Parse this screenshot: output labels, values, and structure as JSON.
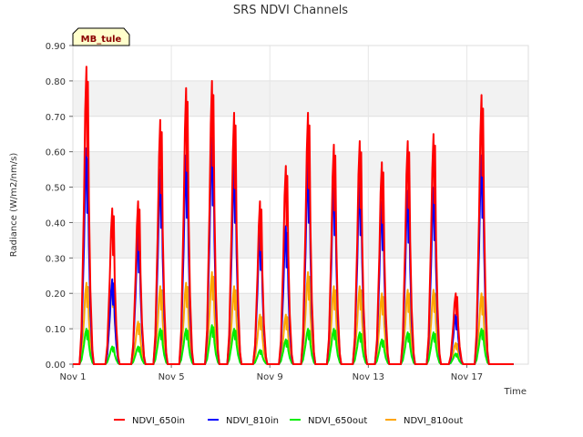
{
  "chart_data": {
    "type": "line",
    "title": "SRS NDVI Channels",
    "xlabel": "Time",
    "ylabel": "Radiance (W/m2/nm/s)",
    "ylim": [
      0,
      0.9
    ],
    "xlim": [
      1,
      19.5
    ],
    "y_ticks": [
      "0.00",
      "0.10",
      "0.20",
      "0.30",
      "0.40",
      "0.50",
      "0.60",
      "0.70",
      "0.80",
      "0.90"
    ],
    "x_ticks": [
      {
        "value": 1,
        "label": "Nov 1"
      },
      {
        "value": 5,
        "label": "Nov 5"
      },
      {
        "value": 9,
        "label": "Nov 9"
      },
      {
        "value": 13,
        "label": "Nov 13"
      },
      {
        "value": 17,
        "label": "Nov 17"
      }
    ],
    "station_label": "MB_tule",
    "series": [
      {
        "name": "NDVI_650in",
        "color": "#ff0000",
        "peaks": [
          0.84,
          0.44,
          0.46,
          0.69,
          0.78,
          0.8,
          0.71,
          0.46,
          0.56,
          0.71,
          0.62,
          0.63,
          0.57,
          0.63,
          0.65,
          0.2,
          0.76
        ]
      },
      {
        "name": "NDVI_810in",
        "color": "#0000ff",
        "peaks": [
          0.61,
          0.24,
          0.37,
          0.55,
          0.59,
          0.64,
          0.57,
          0.38,
          0.39,
          0.57,
          0.52,
          0.52,
          0.46,
          0.49,
          0.5,
          0.14,
          0.59
        ]
      },
      {
        "name": "NDVI_650out",
        "color": "#00ee00",
        "peaks": [
          0.1,
          0.05,
          0.05,
          0.1,
          0.1,
          0.11,
          0.1,
          0.04,
          0.07,
          0.1,
          0.1,
          0.09,
          0.07,
          0.09,
          0.09,
          0.03,
          0.1
        ]
      },
      {
        "name": "NDVI_810out",
        "color": "#ffa500",
        "peaks": [
          0.23,
          0.23,
          0.12,
          0.22,
          0.23,
          0.26,
          0.22,
          0.14,
          0.14,
          0.26,
          0.22,
          0.22,
          0.2,
          0.21,
          0.21,
          0.06,
          0.2
        ]
      }
    ]
  }
}
